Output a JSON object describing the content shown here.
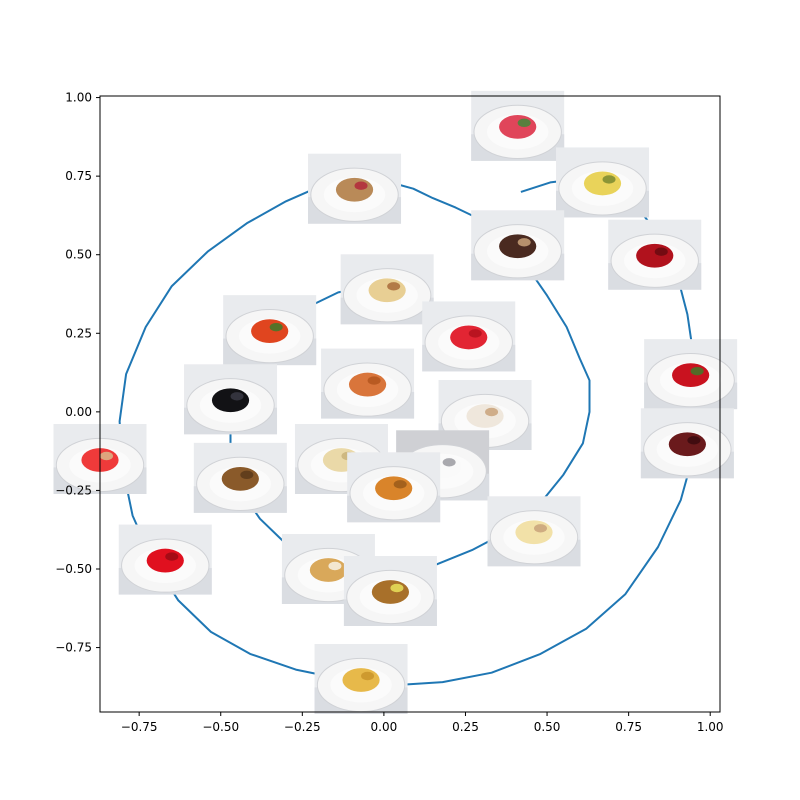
{
  "chart_data": {
    "type": "line",
    "title": "",
    "xlabel": "",
    "ylabel": "",
    "xlim": [
      -0.87,
      1.03
    ],
    "ylim": [
      -0.955,
      1.005
    ],
    "xticks": [
      -0.75,
      -0.5,
      -0.25,
      0.0,
      0.25,
      0.5,
      0.75,
      1.0
    ],
    "xtick_labels": [
      "−0.75",
      "−0.50",
      "−0.25",
      "0.00",
      "0.25",
      "0.50",
      "0.75",
      "1.00"
    ],
    "yticks": [
      1.0,
      0.75,
      0.5,
      0.25,
      0.0,
      -0.25,
      -0.5,
      -0.75
    ],
    "ytick_labels": [
      "1.00",
      "0.75",
      "0.50",
      "0.25",
      "0.00",
      "−0.25",
      "−0.50",
      "−0.75"
    ],
    "grid": false,
    "line_color": "#1f77b4",
    "series": [
      {
        "x": [
          -0.19,
          -0.07,
          0.02,
          0.09,
          0.15,
          0.22,
          0.3,
          0.37,
          0.44,
          0.5,
          0.56,
          0.6,
          0.63,
          0.63,
          0.61,
          0.55,
          0.48,
          0.38,
          0.27,
          0.15,
          0.03,
          -0.09,
          -0.2,
          -0.3,
          -0.38,
          -0.44,
          -0.47,
          -0.47,
          -0.45,
          -0.4,
          -0.33,
          -0.24,
          -0.14,
          -0.04,
          0.06,
          0.14
        ],
        "y": [
          0.72,
          0.74,
          0.73,
          0.71,
          0.68,
          0.65,
          0.61,
          0.54,
          0.46,
          0.37,
          0.27,
          0.17,
          0.1,
          0.0,
          -0.1,
          -0.2,
          -0.29,
          -0.38,
          -0.44,
          -0.49,
          -0.52,
          -0.51,
          -0.48,
          -0.42,
          -0.34,
          -0.25,
          -0.15,
          -0.04,
          0.07,
          0.17,
          0.26,
          0.33,
          0.38,
          0.4,
          0.4,
          0.37
        ]
      },
      {
        "x": [
          -0.19,
          -0.3,
          -0.42,
          -0.54,
          -0.65,
          -0.73,
          -0.79,
          -0.81,
          -0.8,
          -0.77,
          -0.71,
          -0.63,
          -0.53,
          -0.41,
          -0.27,
          -0.13,
          0.03,
          0.18,
          0.33,
          0.48,
          0.62,
          0.74,
          0.84,
          0.91,
          0.95,
          0.96,
          0.95,
          0.93,
          0.9,
          0.86,
          0.8,
          0.74,
          0.67,
          0.59,
          0.51,
          0.42
        ],
        "y": [
          0.72,
          0.67,
          0.6,
          0.51,
          0.4,
          0.27,
          0.12,
          -0.03,
          -0.18,
          -0.33,
          -0.47,
          -0.6,
          -0.7,
          -0.77,
          -0.82,
          -0.85,
          -0.87,
          -0.86,
          -0.83,
          -0.77,
          -0.69,
          -0.58,
          -0.43,
          -0.28,
          -0.13,
          0.03,
          0.17,
          0.31,
          0.43,
          0.54,
          0.62,
          0.68,
          0.72,
          0.74,
          0.73,
          0.7
        ]
      }
    ],
    "thumbnails": [
      {
        "name": "watermelon",
        "x": 0.41,
        "y": 0.91,
        "bg": "#e9ebee",
        "fill": "#e0455a",
        "accent": "#3f8a3a"
      },
      {
        "name": "pineapple",
        "x": 0.67,
        "y": 0.73,
        "bg": "#e9ebee",
        "fill": "#e9d35a",
        "accent": "#7a8a30"
      },
      {
        "name": "cherry-pie",
        "x": -0.09,
        "y": 0.71,
        "bg": "#e9ebee",
        "fill": "#b98a58",
        "accent": "#b2283b"
      },
      {
        "name": "pudding-cup",
        "x": 0.41,
        "y": 0.53,
        "bg": "#e9ebee",
        "fill": "#4a2a20",
        "accent": "#c9a27a"
      },
      {
        "name": "red-apple",
        "x": 0.83,
        "y": 0.5,
        "bg": "#e9ebee",
        "fill": "#b1121d",
        "accent": "#6a0a10"
      },
      {
        "name": "pound-cake",
        "x": 0.01,
        "y": 0.39,
        "bg": "#e9ebee",
        "fill": "#e8cf94",
        "accent": "#a86b3a"
      },
      {
        "name": "tomato",
        "x": -0.35,
        "y": 0.26,
        "bg": "#e9ebee",
        "fill": "#e0451f",
        "accent": "#3d7a2a"
      },
      {
        "name": "red-gummies",
        "x": 0.26,
        "y": 0.24,
        "bg": "#e9ebee",
        "fill": "#e22533",
        "accent": "#b3121d"
      },
      {
        "name": "strawberries",
        "x": 0.94,
        "y": 0.12,
        "bg": "#e9ebee",
        "fill": "#c9121f",
        "accent": "#3f7a2a"
      },
      {
        "name": "black-olives",
        "x": -0.47,
        "y": 0.04,
        "bg": "#e9ebee",
        "fill": "#121215",
        "accent": "#3a3a44"
      },
      {
        "name": "penne-pasta",
        "x": -0.05,
        "y": 0.09,
        "bg": "#e9ebee",
        "fill": "#d9753b",
        "accent": "#b3561f"
      },
      {
        "name": "poptart",
        "x": 0.31,
        "y": -0.01,
        "bg": "#e9ebee",
        "fill": "#efe7dc",
        "accent": "#c9a27a"
      },
      {
        "name": "red-grapes",
        "x": 0.93,
        "y": -0.1,
        "bg": "#e9ebee",
        "fill": "#6a1a1c",
        "accent": "#3a0a0e"
      },
      {
        "name": "popsicles",
        "x": -0.87,
        "y": -0.15,
        "bg": "#e9ebee",
        "fill": "#ef3a3a",
        "accent": "#d9b98a"
      },
      {
        "name": "rice-krispie-treats",
        "x": -0.13,
        "y": -0.15,
        "bg": "#e9ebee",
        "fill": "#ead9a8",
        "accent": "#c9b27a"
      },
      {
        "name": "marshmallows",
        "x": 0.18,
        "y": -0.17,
        "bg": "#cfd0d4",
        "fill": "#fafafa",
        "accent": "#9a9aa0"
      },
      {
        "name": "muffin",
        "x": -0.44,
        "y": -0.21,
        "bg": "#e9ebee",
        "fill": "#8a5a2a",
        "accent": "#5a3a1a"
      },
      {
        "name": "fried-chicken",
        "x": 0.03,
        "y": -0.24,
        "bg": "#e9ebee",
        "fill": "#d9842a",
        "accent": "#9a5a1a"
      },
      {
        "name": "cheesecake",
        "x": 0.46,
        "y": -0.38,
        "bg": "#e9ebee",
        "fill": "#f2e1a8",
        "accent": "#c9a27a"
      },
      {
        "name": "red-jello",
        "x": -0.67,
        "y": -0.47,
        "bg": "#e9ebee",
        "fill": "#e0101f",
        "accent": "#9a0a14"
      },
      {
        "name": "cinnamon-roll",
        "x": -0.17,
        "y": -0.5,
        "bg": "#e9ebee",
        "fill": "#d9a85a",
        "accent": "#f7f2e6"
      },
      {
        "name": "lemon-tart",
        "x": 0.02,
        "y": -0.57,
        "bg": "#e9ebee",
        "fill": "#a8702a",
        "accent": "#e9e05a"
      },
      {
        "name": "applesauce",
        "x": -0.07,
        "y": -0.85,
        "bg": "#e9ebee",
        "fill": "#e7b94a",
        "accent": "#c9942a"
      }
    ]
  }
}
